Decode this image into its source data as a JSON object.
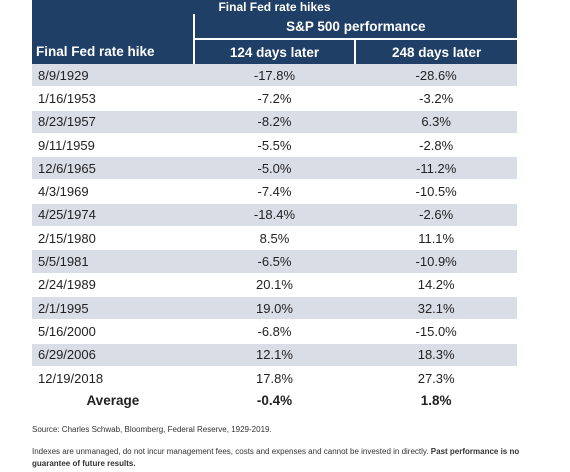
{
  "header": {
    "title": "Final Fed rate hikes"
  },
  "table": {
    "group_header": "S&P 500 performance",
    "columns": [
      "Final Fed rate hike",
      "124 days later",
      "248 days later"
    ],
    "rows": [
      [
        "8/9/1929",
        "-17.8%",
        "-28.6%"
      ],
      [
        "1/16/1953",
        "-7.2%",
        "-3.2%"
      ],
      [
        "8/23/1957",
        "-8.2%",
        "6.3%"
      ],
      [
        "9/11/1959",
        "-5.5%",
        "-2.8%"
      ],
      [
        "12/6/1965",
        "-5.0%",
        "-11.2%"
      ],
      [
        "4/3/1969",
        "-7.4%",
        "-10.5%"
      ],
      [
        "4/25/1974",
        "-18.4%",
        "-2.6%"
      ],
      [
        "2/15/1980",
        "8.5%",
        "11.1%"
      ],
      [
        "5/5/1981",
        "-6.5%",
        "-10.9%"
      ],
      [
        "2/24/1989",
        "20.1%",
        "14.2%"
      ],
      [
        "2/1/1995",
        "19.0%",
        "32.1%"
      ],
      [
        "5/16/2000",
        "-6.8%",
        "-15.0%"
      ],
      [
        "6/29/2006",
        "12.1%",
        "18.3%"
      ],
      [
        "12/19/2018",
        "17.8%",
        "27.3%"
      ]
    ],
    "average": [
      "Average",
      "-0.4%",
      "1.8%"
    ]
  },
  "footer": {
    "source": "Source: Charles Schwab, Bloomberg, Federal Reserve, 1929-2019.",
    "note": "Indexes are unmanaged, do not incur management fees, costs and expenses and cannot be invested in directly.",
    "note_bold": "Past performance is no guarantee of future results."
  }
}
